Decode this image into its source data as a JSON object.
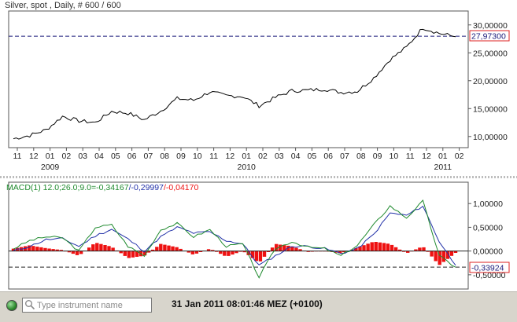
{
  "instrument_title": "Silver, spot , Daily, # 600 / 600",
  "current_price_label": "27,97300",
  "macd_label": {
    "name": "MACD(1) 12.0;26.0;9.0=",
    "macd": "-0,34167",
    "sep1": "/",
    "signal": "-0,29997",
    "sep2": "/",
    "hist": "-0,04170"
  },
  "macd_current_label": "-0,33924",
  "search": {
    "placeholder": "Type instrument name"
  },
  "status": {
    "timestamp": "31 Jan 2011 08:01:46  MEZ (+0100)"
  },
  "colors": {
    "price_line": "#000000",
    "macd_line": "#1f8a2e",
    "signal_line": "#2231a8",
    "histogram": "#ee1111",
    "dashed_line": "#1a1a7a",
    "current_label_border": "#dd2222"
  },
  "chart_data": [
    {
      "type": "line",
      "title": "Silver, spot , Daily, # 600 / 600",
      "x_tick_labels": [
        "11",
        "12",
        "01",
        "02",
        "03",
        "04",
        "05",
        "06",
        "07",
        "08",
        "09",
        "10",
        "11",
        "12",
        "01",
        "02",
        "03",
        "04",
        "05",
        "06",
        "07",
        "08",
        "09",
        "10",
        "11",
        "12",
        "01",
        "02"
      ],
      "year_labels": [
        "2009",
        "2010",
        "2011"
      ],
      "y_tick_labels": [
        "30,00000",
        "25,00000",
        "20,00000",
        "15,00000",
        "10,00000"
      ],
      "ylim": [
        8,
        32.5
      ],
      "current_value": 27.973,
      "grid": false,
      "series": [
        {
          "x": [
            "2008-11",
            "2008-12",
            "2009-01",
            "2009-02",
            "2009-03",
            "2009-04",
            "2009-05",
            "2009-06",
            "2009-07",
            "2009-08",
            "2009-09",
            "2009-10",
            "2009-11",
            "2009-12",
            "2010-01",
            "2010-02",
            "2010-03",
            "2010-04",
            "2010-05",
            "2010-06",
            "2010-07",
            "2010-08",
            "2010-09",
            "2010-10",
            "2010-11",
            "2010-12",
            "2011-01",
            "2011-02"
          ],
          "values": [
            9.6,
            10.2,
            11.2,
            13.6,
            12.8,
            12.5,
            14.5,
            14.2,
            13.0,
            14.6,
            16.8,
            16.5,
            18.0,
            17.3,
            17.2,
            15.5,
            17.0,
            18.2,
            18.3,
            18.5,
            17.9,
            18.1,
            20.5,
            23.8,
            26.0,
            29.5,
            28.5,
            27.9
          ]
        }
      ]
    },
    {
      "type": "line",
      "title": "MACD(1) 12.0;26.0;9.0",
      "y_tick_labels": [
        "1,00000",
        "0,50000",
        "0,00000",
        "-0,50000"
      ],
      "ylim": [
        -0.8,
        1.45
      ],
      "current_value": -0.33924,
      "grid": false,
      "series": [
        {
          "values": [
            0.05,
            0.22,
            0.3,
            0.28,
            0.0,
            0.5,
            0.55,
            0.1,
            -0.1,
            0.45,
            0.58,
            0.3,
            0.45,
            0.1,
            0.15,
            -0.55,
            0.05,
            0.2,
            0.08,
            0.05,
            -0.1,
            0.12,
            0.55,
            0.95,
            0.7,
            1.05,
            -0.1,
            -0.34
          ]
        },
        {
          "values": [
            0.0,
            0.1,
            0.24,
            0.26,
            0.1,
            0.32,
            0.46,
            0.25,
            0.0,
            0.3,
            0.5,
            0.38,
            0.4,
            0.22,
            0.15,
            -0.3,
            -0.1,
            0.1,
            0.1,
            0.05,
            -0.05,
            0.05,
            0.35,
            0.8,
            0.75,
            0.95,
            0.2,
            -0.3
          ]
        },
        {
          "values": [
            0.05,
            0.12,
            0.06,
            0.02,
            -0.1,
            0.18,
            0.09,
            -0.15,
            -0.1,
            0.15,
            0.08,
            -0.08,
            0.05,
            -0.12,
            0.0,
            -0.25,
            0.15,
            0.1,
            -0.02,
            0.0,
            -0.05,
            0.07,
            0.2,
            0.15,
            -0.05,
            0.1,
            -0.3,
            -0.04
          ]
        }
      ]
    }
  ]
}
